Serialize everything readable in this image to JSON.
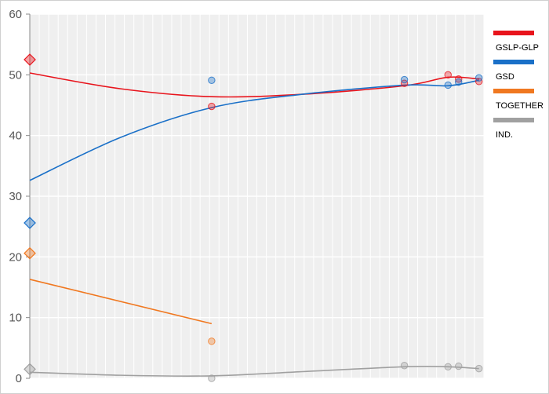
{
  "chart_data": {
    "type": "scatter",
    "title": "",
    "xlabel": "",
    "ylabel": "",
    "ylim": [
      0,
      60
    ],
    "yticks": [
      0,
      10,
      20,
      30,
      40,
      50,
      60
    ],
    "grid": true,
    "legend_position": "right",
    "x_range": [
      0,
      100
    ],
    "series": [
      {
        "name": "GSLP-GLP",
        "color": "#e8141c",
        "result": {
          "x": 0,
          "y": 52.5
        },
        "polls": [
          {
            "x": 50,
            "y": 44.8
          },
          {
            "x": 103,
            "y": 48.6
          },
          {
            "x": 115,
            "y": 50
          },
          {
            "x": 117.9,
            "y": 49.3
          },
          {
            "x": 123.5,
            "y": 48.9
          }
        ],
        "trend": [
          {
            "x": 0,
            "y": 50.3
          },
          {
            "x": 25,
            "y": 47.7
          },
          {
            "x": 50,
            "y": 46.4
          },
          {
            "x": 75,
            "y": 46.8
          },
          {
            "x": 103,
            "y": 48.2
          },
          {
            "x": 115,
            "y": 49.6
          },
          {
            "x": 123.5,
            "y": 49.3
          }
        ]
      },
      {
        "name": "GSD",
        "color": "#1a70c8",
        "result": {
          "x": 0,
          "y": 25.6
        },
        "polls": [
          {
            "x": 50,
            "y": 49.1
          },
          {
            "x": 103,
            "y": 49.2
          },
          {
            "x": 115,
            "y": 48.3
          },
          {
            "x": 117.9,
            "y": 48.8
          },
          {
            "x": 123.5,
            "y": 49.5
          }
        ],
        "trend": [
          {
            "x": 0,
            "y": 32.6
          },
          {
            "x": 25,
            "y": 39.7
          },
          {
            "x": 50,
            "y": 44.6
          },
          {
            "x": 75,
            "y": 46.8
          },
          {
            "x": 103,
            "y": 48.3
          },
          {
            "x": 115,
            "y": 48.2
          },
          {
            "x": 123.5,
            "y": 49.1
          }
        ]
      },
      {
        "name": "TOGETHER",
        "color": "#f07820",
        "result": {
          "x": 0,
          "y": 20.6
        },
        "polls": [
          {
            "x": 50,
            "y": 6.1
          }
        ],
        "trend": [
          {
            "x": 0,
            "y": 16.3
          },
          {
            "x": 50,
            "y": 9
          }
        ]
      },
      {
        "name": "IND.",
        "color": "#a0a0a0",
        "result": {
          "x": 0,
          "y": 1.5
        },
        "polls": [
          {
            "x": 50,
            "y": 0
          },
          {
            "x": 103,
            "y": 2.1
          },
          {
            "x": 115,
            "y": 1.9
          },
          {
            "x": 117.9,
            "y": 2.0
          },
          {
            "x": 123.5,
            "y": 1.6
          }
        ],
        "trend": [
          {
            "x": 0,
            "y": 1.0
          },
          {
            "x": 25,
            "y": 0.5
          },
          {
            "x": 50,
            "y": 0.4
          },
          {
            "x": 75,
            "y": 1.1
          },
          {
            "x": 103,
            "y": 1.9
          },
          {
            "x": 115,
            "y": 1.9
          },
          {
            "x": 123.5,
            "y": 1.6
          }
        ]
      }
    ]
  }
}
